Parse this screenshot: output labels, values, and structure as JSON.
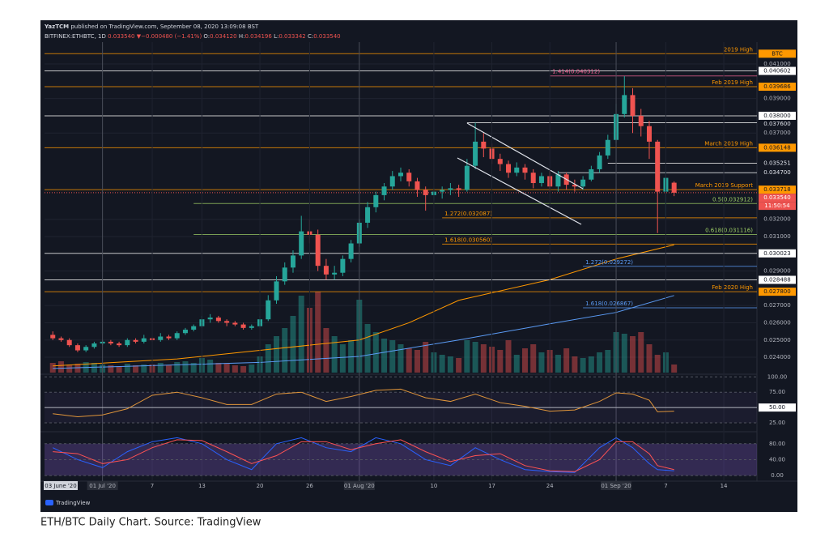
{
  "header": {
    "publisher": "YazTCM",
    "published": "published on TradingView.com, September 08, 2020 13:09:08 BST",
    "symbol": "BITFINEX:ETHBTC, 1D",
    "price": "0.033540",
    "change": "▼−0.000480 (−1.41%)",
    "ohlc": [
      {
        "label": "O:",
        "value": "0.034120"
      },
      {
        "label": "H:",
        "value": "0.034196"
      },
      {
        "label": "L:",
        "value": "0.033342"
      },
      {
        "label": "C:",
        "value": "0.033540"
      }
    ]
  },
  "chart_data": {
    "type": "candlestick",
    "up_color": "#26a69a",
    "down_color": "#ef5350",
    "x": [
      "2020-06-25",
      "2020-06-26",
      "2020-06-27",
      "2020-06-28",
      "2020-06-29",
      "2020-06-30",
      "2020-07-01",
      "2020-07-02",
      "2020-07-03",
      "2020-07-04",
      "2020-07-05",
      "2020-07-06",
      "2020-07-07",
      "2020-07-08",
      "2020-07-09",
      "2020-07-10",
      "2020-07-11",
      "2020-07-12",
      "2020-07-13",
      "2020-07-14",
      "2020-07-15",
      "2020-07-16",
      "2020-07-17",
      "2020-07-18",
      "2020-07-19",
      "2020-07-20",
      "2020-07-21",
      "2020-07-22",
      "2020-07-23",
      "2020-07-24",
      "2020-07-25",
      "2020-07-26",
      "2020-07-27",
      "2020-07-28",
      "2020-07-29",
      "2020-07-30",
      "2020-07-31",
      "2020-08-01",
      "2020-08-02",
      "2020-08-03",
      "2020-08-04",
      "2020-08-05",
      "2020-08-06",
      "2020-08-07",
      "2020-08-08",
      "2020-08-09",
      "2020-08-10",
      "2020-08-11",
      "2020-08-12",
      "2020-08-13",
      "2020-08-14",
      "2020-08-15",
      "2020-08-16",
      "2020-08-17",
      "2020-08-18",
      "2020-08-19",
      "2020-08-20",
      "2020-08-21",
      "2020-08-22",
      "2020-08-23",
      "2020-08-24",
      "2020-08-25",
      "2020-08-26",
      "2020-08-27",
      "2020-08-28",
      "2020-08-29",
      "2020-08-30",
      "2020-08-31",
      "2020-09-01",
      "2020-09-02",
      "2020-09-03",
      "2020-09-04",
      "2020-09-05",
      "2020-09-06",
      "2020-09-07",
      "2020-09-08"
    ],
    "candles": [
      [
        0.0253,
        0.0255,
        0.025,
        0.0251
      ],
      [
        0.0251,
        0.0252,
        0.0249,
        0.025
      ],
      [
        0.025,
        0.0251,
        0.0246,
        0.0247
      ],
      [
        0.0247,
        0.0248,
        0.0243,
        0.0244
      ],
      [
        0.0244,
        0.0247,
        0.0243,
        0.0246
      ],
      [
        0.0246,
        0.0249,
        0.0245,
        0.0248
      ],
      [
        0.0248,
        0.025,
        0.0247,
        0.0249
      ],
      [
        0.0249,
        0.025,
        0.0247,
        0.0248
      ],
      [
        0.0248,
        0.0249,
        0.0246,
        0.0247
      ],
      [
        0.0247,
        0.0251,
        0.0246,
        0.025
      ],
      [
        0.025,
        0.0251,
        0.0248,
        0.0249
      ],
      [
        0.0249,
        0.0253,
        0.0248,
        0.0251
      ],
      [
        0.0251,
        0.0252,
        0.0249,
        0.025
      ],
      [
        0.025,
        0.0254,
        0.0249,
        0.0252
      ],
      [
        0.0252,
        0.0253,
        0.025,
        0.0251
      ],
      [
        0.0251,
        0.0255,
        0.025,
        0.0254
      ],
      [
        0.0254,
        0.0257,
        0.0253,
        0.0256
      ],
      [
        0.0256,
        0.0259,
        0.0255,
        0.0258
      ],
      [
        0.0258,
        0.0264,
        0.0257,
        0.0262
      ],
      [
        0.0262,
        0.0265,
        0.026,
        0.0263
      ],
      [
        0.0263,
        0.0264,
        0.026,
        0.0261
      ],
      [
        0.0261,
        0.0262,
        0.0258,
        0.026
      ],
      [
        0.026,
        0.0261,
        0.0258,
        0.0259
      ],
      [
        0.0259,
        0.026,
        0.0256,
        0.0257
      ],
      [
        0.0257,
        0.0259,
        0.0256,
        0.0258
      ],
      [
        0.0258,
        0.0264,
        0.0257,
        0.0262
      ],
      [
        0.0262,
        0.0276,
        0.0261,
        0.0273
      ],
      [
        0.0273,
        0.0287,
        0.0271,
        0.0284
      ],
      [
        0.0284,
        0.0295,
        0.0282,
        0.0292
      ],
      [
        0.0292,
        0.0302,
        0.0289,
        0.0299
      ],
      [
        0.0299,
        0.0322,
        0.0297,
        0.0313
      ],
      [
        0.0313,
        0.032,
        0.0306,
        0.0311
      ],
      [
        0.0311,
        0.0314,
        0.029,
        0.0293
      ],
      [
        0.0293,
        0.0297,
        0.0285,
        0.0288
      ],
      [
        0.0288,
        0.0293,
        0.0285,
        0.0289
      ],
      [
        0.0289,
        0.0299,
        0.0287,
        0.0297
      ],
      [
        0.0297,
        0.0308,
        0.0295,
        0.0306
      ],
      [
        0.0306,
        0.032,
        0.0304,
        0.0318
      ],
      [
        0.0318,
        0.033,
        0.0315,
        0.0327
      ],
      [
        0.0327,
        0.0336,
        0.0324,
        0.0334
      ],
      [
        0.0334,
        0.0341,
        0.0331,
        0.0339
      ],
      [
        0.0339,
        0.0348,
        0.0337,
        0.0345
      ],
      [
        0.0345,
        0.035,
        0.0342,
        0.0347
      ],
      [
        0.0347,
        0.0349,
        0.0339,
        0.0342
      ],
      [
        0.0342,
        0.0344,
        0.0333,
        0.0337
      ],
      [
        0.0337,
        0.0339,
        0.0325,
        0.0334
      ],
      [
        0.0334,
        0.0338,
        0.0331,
        0.0336
      ],
      [
        0.0336,
        0.0339,
        0.0332,
        0.0337
      ],
      [
        0.0337,
        0.0341,
        0.0334,
        0.0338
      ],
      [
        0.0338,
        0.034,
        0.0333,
        0.0337
      ],
      [
        0.0337,
        0.0355,
        0.0336,
        0.0351
      ],
      [
        0.0351,
        0.0376,
        0.0349,
        0.0365
      ],
      [
        0.0365,
        0.037,
        0.0356,
        0.0361
      ],
      [
        0.0361,
        0.0364,
        0.0352,
        0.0355
      ],
      [
        0.0355,
        0.0358,
        0.0348,
        0.0352
      ],
      [
        0.0352,
        0.0354,
        0.0344,
        0.0347
      ],
      [
        0.0347,
        0.0353,
        0.0345,
        0.035
      ],
      [
        0.035,
        0.0352,
        0.0343,
        0.0347
      ],
      [
        0.0347,
        0.0349,
        0.0338,
        0.0341
      ],
      [
        0.0341,
        0.0347,
        0.0339,
        0.0345
      ],
      [
        0.0345,
        0.0348,
        0.0336,
        0.0339
      ],
      [
        0.0339,
        0.0348,
        0.0336,
        0.0346
      ],
      [
        0.0346,
        0.0347,
        0.0337,
        0.034
      ],
      [
        0.034,
        0.0343,
        0.0336,
        0.0339
      ],
      [
        0.0339,
        0.0345,
        0.0337,
        0.0343
      ],
      [
        0.0343,
        0.0351,
        0.0342,
        0.0349
      ],
      [
        0.0349,
        0.0359,
        0.0347,
        0.0357
      ],
      [
        0.0357,
        0.0369,
        0.0355,
        0.0366
      ],
      [
        0.0366,
        0.0387,
        0.0364,
        0.0381
      ],
      [
        0.0381,
        0.0403,
        0.0379,
        0.0392
      ],
      [
        0.0392,
        0.0396,
        0.037,
        0.038
      ],
      [
        0.038,
        0.0384,
        0.0368,
        0.0374
      ],
      [
        0.0374,
        0.0377,
        0.0355,
        0.0365
      ],
      [
        0.0365,
        0.0366,
        0.0312,
        0.0336
      ],
      [
        0.0336,
        0.0348,
        0.0322,
        0.0344
      ],
      [
        0.03412,
        0.034196,
        0.033342,
        0.03354
      ]
    ],
    "volume": [
      12,
      14,
      10,
      11,
      13,
      12,
      10,
      9,
      8,
      11,
      9,
      10,
      10,
      12,
      9,
      13,
      14,
      12,
      18,
      16,
      12,
      11,
      9,
      8,
      10,
      20,
      35,
      45,
      55,
      70,
      95,
      80,
      100,
      55,
      45,
      35,
      40,
      90,
      60,
      50,
      42,
      40,
      35,
      30,
      28,
      38,
      25,
      22,
      20,
      18,
      40,
      38,
      35,
      32,
      28,
      40,
      22,
      30,
      35,
      25,
      28,
      22,
      30,
      20,
      18,
      20,
      25,
      28,
      50,
      48,
      45,
      50,
      35,
      22,
      25,
      10
    ],
    "moving_averages": [
      {
        "color": "#ff9800",
        "x": [
          "2020-06-25",
          "2020-07-10",
          "2020-07-20",
          "2020-08-01",
          "2020-08-07",
          "2020-08-13",
          "2020-08-24",
          "2020-09-01",
          "2020-09-08"
        ],
        "values": [
          0.0235,
          0.0239,
          0.0244,
          0.025,
          0.026,
          0.0273,
          0.0285,
          0.0297,
          0.03052
        ]
      },
      {
        "color": "#5b9cf6",
        "x": [
          "2020-06-25",
          "2020-07-20",
          "2020-08-01",
          "2020-08-13",
          "2020-08-24",
          "2020-09-01",
          "2020-09-08"
        ],
        "values": [
          0.02335,
          0.0237,
          0.02405,
          0.025,
          0.02594,
          0.0266,
          0.02758
        ]
      }
    ],
    "xlim": [
      "2020-06-24",
      "2020-09-18"
    ],
    "xticks": [
      {
        "value": "2020-07-01",
        "label": "01 Jul '20"
      },
      {
        "value": "2020-07-07",
        "label": "7"
      },
      {
        "value": "2020-07-13",
        "label": "13"
      },
      {
        "value": "2020-07-20",
        "label": "20"
      },
      {
        "value": "2020-07-26",
        "label": "26"
      },
      {
        "value": "2020-08-01",
        "label": "01 Aug '20"
      },
      {
        "value": "2020-08-10",
        "label": "10"
      },
      {
        "value": "2020-08-17",
        "label": "17"
      },
      {
        "value": "2020-08-24",
        "label": "24"
      },
      {
        "value": "2020-09-01",
        "label": "01 Sep '20"
      },
      {
        "value": "2020-09-07",
        "label": "7"
      },
      {
        "value": "2020-09-14",
        "label": "14"
      }
    ],
    "cursor_label": "03 June '20",
    "ylim": [
      0.02311,
      0.04213
    ],
    "yticks": [
      {
        "value": 0.041,
        "label": "0.041000"
      },
      {
        "value": 0.039,
        "label": "0.039000"
      },
      {
        "value": 0.037,
        "label": "0.037000"
      },
      {
        "value": 0.032,
        "label": "0.032000"
      },
      {
        "value": 0.031,
        "label": "0.031000"
      },
      {
        "value": 0.029,
        "label": "0.029000"
      },
      {
        "value": 0.027,
        "label": "0.027000"
      },
      {
        "value": 0.026,
        "label": "0.026000"
      },
      {
        "value": 0.025,
        "label": "0.025000"
      },
      {
        "value": 0.024,
        "label": "0.024000"
      }
    ],
    "grid": true,
    "levels": [
      {
        "value": 0.0416,
        "color": "#ff9800",
        "text": "2019 High",
        "text_position": "end",
        "axis_label": "BTC",
        "boxed": true
      },
      {
        "value": 0.040602,
        "color": "#ffffff",
        "axis_label": "0.040602",
        "boxed": true
      },
      {
        "value": 0.040312,
        "color": "#f06292",
        "text": "1.414(0.040312)",
        "text_position": "start",
        "start": "2020-08-24"
      },
      {
        "value": 0.039686,
        "color": "#ff9800",
        "text": "Feb 2019 High",
        "text_position": "end",
        "axis_label": "0.039686",
        "boxed": true
      },
      {
        "value": 0.038,
        "color": "#ffffff",
        "axis_label": "0.038000",
        "boxed": true
      },
      {
        "value": 0.0376,
        "color": "#ffffff",
        "start": "2020-08-14",
        "axis_label": "0.037600",
        "boxed": false
      },
      {
        "value": 0.036148,
        "color": "#ff9800",
        "text": "March 2019 High",
        "text_position": "end",
        "axis_label": "0.036148",
        "boxed": true
      },
      {
        "value": 0.035251,
        "color": "#ffffff",
        "start": "2020-08-31",
        "axis_label": "0.035251",
        "boxed": false
      },
      {
        "value": 0.0347,
        "color": "#ffffff",
        "start": "2020-08-25",
        "axis_label": "0.034700",
        "boxed": false
      },
      {
        "value": 0.033718,
        "color": "#ff9800",
        "text": "March 2019 Support",
        "text_position": "end",
        "axis_label": "0.033718",
        "boxed": true
      },
      {
        "value": 0.032912,
        "color": "#9ccc65",
        "text": "0.5(0.032912)",
        "text_position": "end",
        "start": "2020-07-12"
      },
      {
        "value": 0.032087,
        "color": "#ff9800",
        "text": "1.272(0.032087)",
        "text_position": "start",
        "start": "2020-08-11"
      },
      {
        "value": 0.031116,
        "color": "#9ccc65",
        "text": "0.618(0.031116)",
        "text_position": "end",
        "start": "2020-07-12"
      },
      {
        "value": 0.03056,
        "color": "#ff9800",
        "text": "1.618(0.030560)",
        "text_position": "start",
        "start": "2020-08-11"
      },
      {
        "value": 0.030023,
        "color": "#ffffff",
        "axis_label": "0.030023",
        "boxed": true
      },
      {
        "value": 0.029272,
        "color": "#5b9cf6",
        "text": "1.272(0.029272)",
        "text_position": "start",
        "start": "2020-08-28"
      },
      {
        "value": 0.028488,
        "color": "#ffffff",
        "axis_label": "0.028488",
        "boxed": true
      },
      {
        "value": 0.0278,
        "color": "#ff9800",
        "text": "Feb 2020 High",
        "text_position": "end",
        "axis_label": "0.027800",
        "boxed": true
      },
      {
        "value": 0.026867,
        "color": "#5b9cf6",
        "text": "1.618(0.026867)",
        "text_position": "start",
        "start": "2020-08-28"
      }
    ],
    "current_price": {
      "value": 0.03354,
      "label": "0.033540",
      "countdown": "11:50:54",
      "color": "#ef5350"
    },
    "rsi": {
      "color": "#e0953a",
      "ylim": [
        14.5,
        103
      ],
      "yticks": [
        {
          "value": 100,
          "label": "100.00"
        },
        {
          "value": 75,
          "label": "75.00"
        },
        {
          "value": 50,
          "label": "50.00"
        },
        {
          "value": 25,
          "label": "25.00"
        }
      ],
      "x": [
        "2020-06-25",
        "2020-06-28",
        "2020-07-01",
        "2020-07-04",
        "2020-07-07",
        "2020-07-10",
        "2020-07-13",
        "2020-07-16",
        "2020-07-19",
        "2020-07-22",
        "2020-07-25",
        "2020-07-28",
        "2020-07-31",
        "2020-08-03",
        "2020-08-06",
        "2020-08-09",
        "2020-08-12",
        "2020-08-15",
        "2020-08-18",
        "2020-08-21",
        "2020-08-24",
        "2020-08-27",
        "2020-08-30",
        "2020-09-01",
        "2020-09-03",
        "2020-09-05",
        "2020-09-06",
        "2020-09-08"
      ],
      "values": [
        40,
        35,
        38,
        48,
        70,
        75,
        66,
        55,
        55,
        72,
        75,
        60,
        68,
        78,
        80,
        66,
        60,
        72,
        58,
        52,
        44,
        46,
        60,
        74,
        72,
        62,
        43,
        44
      ]
    },
    "stoch": {
      "ylim": [
        -14,
        106
      ],
      "yticks": [
        {
          "value": 80,
          "label": "80.00"
        },
        {
          "value": 40,
          "label": "40.00"
        },
        {
          "value": 0,
          "label": "0.00"
        }
      ],
      "x": [
        "2020-06-25",
        "2020-06-28",
        "2020-07-01",
        "2020-07-04",
        "2020-07-07",
        "2020-07-10",
        "2020-07-13",
        "2020-07-16",
        "2020-07-19",
        "2020-07-22",
        "2020-07-25",
        "2020-07-28",
        "2020-07-31",
        "2020-08-03",
        "2020-08-06",
        "2020-08-09",
        "2020-08-12",
        "2020-08-15",
        "2020-08-18",
        "2020-08-21",
        "2020-08-24",
        "2020-08-27",
        "2020-08-30",
        "2020-09-01",
        "2020-09-03",
        "2020-09-05",
        "2020-09-06",
        "2020-09-08"
      ],
      "series": [
        {
          "color": "#2962ff",
          "values": [
            70,
            40,
            20,
            60,
            85,
            95,
            80,
            40,
            15,
            80,
            95,
            70,
            60,
            95,
            80,
            40,
            25,
            70,
            40,
            15,
            10,
            8,
            70,
            95,
            70,
            30,
            15,
            12
          ]
        },
        {
          "color": "#ff5252",
          "values": [
            60,
            55,
            30,
            40,
            70,
            90,
            88,
            60,
            30,
            50,
            85,
            85,
            65,
            80,
            90,
            60,
            35,
            50,
            55,
            25,
            12,
            10,
            40,
            85,
            85,
            55,
            25,
            15
          ]
        }
      ]
    }
  },
  "footer": {
    "logo": "TradingView",
    "caption": "ETH/BTC Daily Chart. Source: TradingView"
  }
}
